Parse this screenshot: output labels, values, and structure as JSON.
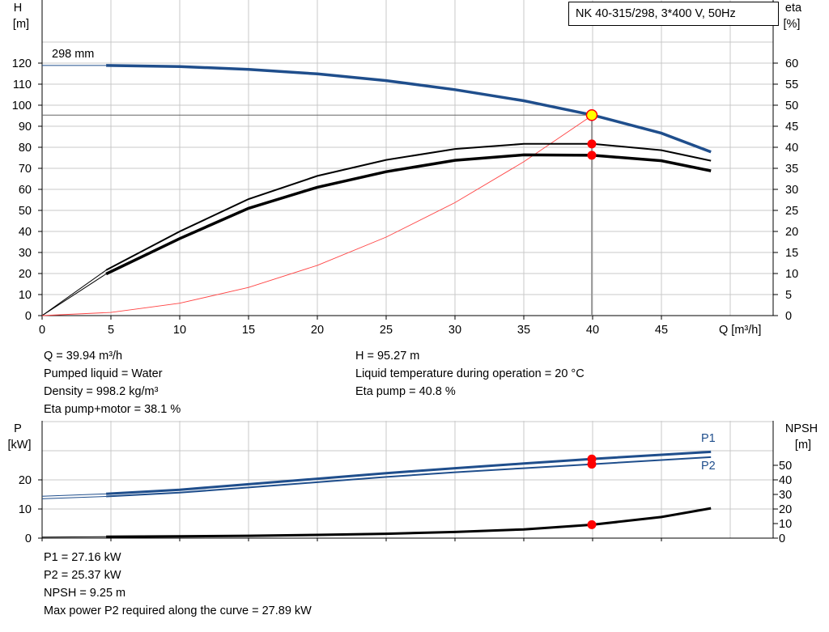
{
  "title": "NK 40-315/298, 3*400 V, 50Hz",
  "colors": {
    "curve_blue": "#1f4e8c",
    "marker_red": "#ff0000",
    "marker_yellow": "#ffff00",
    "grid": "#c8c8c8",
    "system_curve": "#ff4444"
  },
  "info_top_left": [
    "Q = 39.94 m³/h",
    "Pumped liquid = Water",
    "Density = 998.2 kg/m³",
    "Eta pump+motor = 38.1 %"
  ],
  "info_top_right": [
    "H = 95.27 m",
    "Liquid temperature during operation = 20 °C",
    "Eta pump = 40.8 %"
  ],
  "info_bottom": [
    "P1 = 27.16 kW",
    "P2 = 25.37 kW",
    "NPSH = 9.25 m",
    "Max power P2 required along the curve = 27.89 kW"
  ],
  "chart_data": [
    {
      "type": "line",
      "ylabel": "H",
      "yunit": "[m]",
      "y2label": "eta",
      "y2unit": "[%]",
      "xlabel": "Q [m³/h]",
      "xlim": [
        0,
        53
      ],
      "ylim": [
        0,
        130
      ],
      "y2lim": [
        0,
        65
      ],
      "xticks": [
        0,
        5,
        10,
        15,
        20,
        25,
        30,
        35,
        40,
        45
      ],
      "yticks": [
        0,
        10,
        20,
        30,
        40,
        50,
        60,
        70,
        80,
        90,
        100,
        110,
        120
      ],
      "y2ticks": [
        0,
        5,
        10,
        15,
        20,
        25,
        30,
        35,
        40,
        45,
        50,
        55,
        60
      ],
      "grid": true,
      "annotation": "298 mm",
      "series": [
        {
          "name": "H",
          "axis": "left",
          "x": [
            4.65,
            10,
            15,
            20,
            25,
            30,
            35,
            40,
            45,
            48.6
          ],
          "y": [
            118.9,
            118.4,
            117.0,
            114.9,
            111.7,
            107.4,
            102.1,
            95.3,
            86.7,
            77.8
          ],
          "extension": {
            "x": [
              0,
              4.65
            ],
            "y": [
              118.9,
              118.9
            ]
          }
        },
        {
          "name": "Eta pump",
          "axis": "right",
          "x": [
            4.65,
            10,
            15,
            20,
            25,
            30,
            35,
            40,
            45,
            48.6
          ],
          "y": [
            10.8,
            20.0,
            27.7,
            33.2,
            37.0,
            39.6,
            40.8,
            40.8,
            39.3,
            36.8
          ],
          "extension": {
            "x": [
              0,
              4.65
            ],
            "y": [
              0,
              10.8
            ]
          }
        },
        {
          "name": "Eta pump+motor",
          "axis": "right",
          "x": [
            4.65,
            10,
            15,
            20,
            25,
            30,
            35,
            40,
            45,
            48.6
          ],
          "y": [
            9.9,
            18.3,
            25.5,
            30.5,
            34.2,
            36.9,
            38.2,
            38.1,
            36.8,
            34.4
          ],
          "extension": {
            "x": [
              0,
              4.65
            ],
            "y": [
              0,
              9.9
            ]
          }
        },
        {
          "name": "System curve",
          "axis": "left",
          "x": [
            0,
            5,
            10,
            15,
            20,
            25,
            30,
            35,
            40
          ],
          "y": [
            0,
            1.5,
            5.9,
            13.4,
            23.9,
            37.3,
            53.7,
            73.1,
            95.3
          ]
        }
      ],
      "duty_point": {
        "q": 39.94,
        "h": 95.27,
        "eta_pump": 40.8,
        "eta_pump_motor": 38.1
      }
    },
    {
      "type": "line",
      "ylabel": "P",
      "yunit": "[kW]",
      "y2label": "NPSH",
      "y2unit": "[m]",
      "xlim": [
        0,
        53
      ],
      "ylim": [
        0,
        40
      ],
      "y2lim": [
        0,
        70
      ],
      "yticks": [
        0,
        10,
        20
      ],
      "y2ticks": [
        0,
        10,
        20,
        30,
        40,
        50
      ],
      "grid": true,
      "series": [
        {
          "name": "P1",
          "axis": "left",
          "x": [
            4.65,
            10,
            15,
            20,
            25,
            30,
            35,
            40,
            45,
            48.6
          ],
          "y": [
            15.2,
            16.6,
            18.5,
            20.4,
            22.3,
            24.0,
            25.6,
            27.2,
            28.6,
            29.6
          ],
          "extension": {
            "x": [
              0,
              4.65
            ],
            "y": [
              14.4,
              15.2
            ]
          }
        },
        {
          "name": "P2",
          "axis": "left",
          "x": [
            4.65,
            10,
            15,
            20,
            25,
            30,
            35,
            40,
            45,
            48.6
          ],
          "y": [
            14.3,
            15.6,
            17.4,
            19.2,
            21.0,
            22.6,
            24.0,
            25.4,
            26.8,
            27.8
          ],
          "extension": {
            "x": [
              0,
              4.65
            ],
            "y": [
              13.5,
              14.3
            ]
          }
        },
        {
          "name": "NPSH",
          "axis": "right",
          "x": [
            4.65,
            10,
            15,
            20,
            25,
            30,
            35,
            40,
            45,
            48.6
          ],
          "y": [
            1.0,
            1.2,
            1.6,
            2.2,
            3.0,
            4.2,
            6.0,
            9.25,
            14.5,
            20.5
          ],
          "extension": {
            "x": [
              0,
              4.65
            ],
            "y": [
              0.7,
              1.0
            ]
          }
        }
      ],
      "duty_point": {
        "q": 39.94,
        "p1": 27.16,
        "p2": 25.37,
        "npsh": 9.25
      }
    }
  ]
}
